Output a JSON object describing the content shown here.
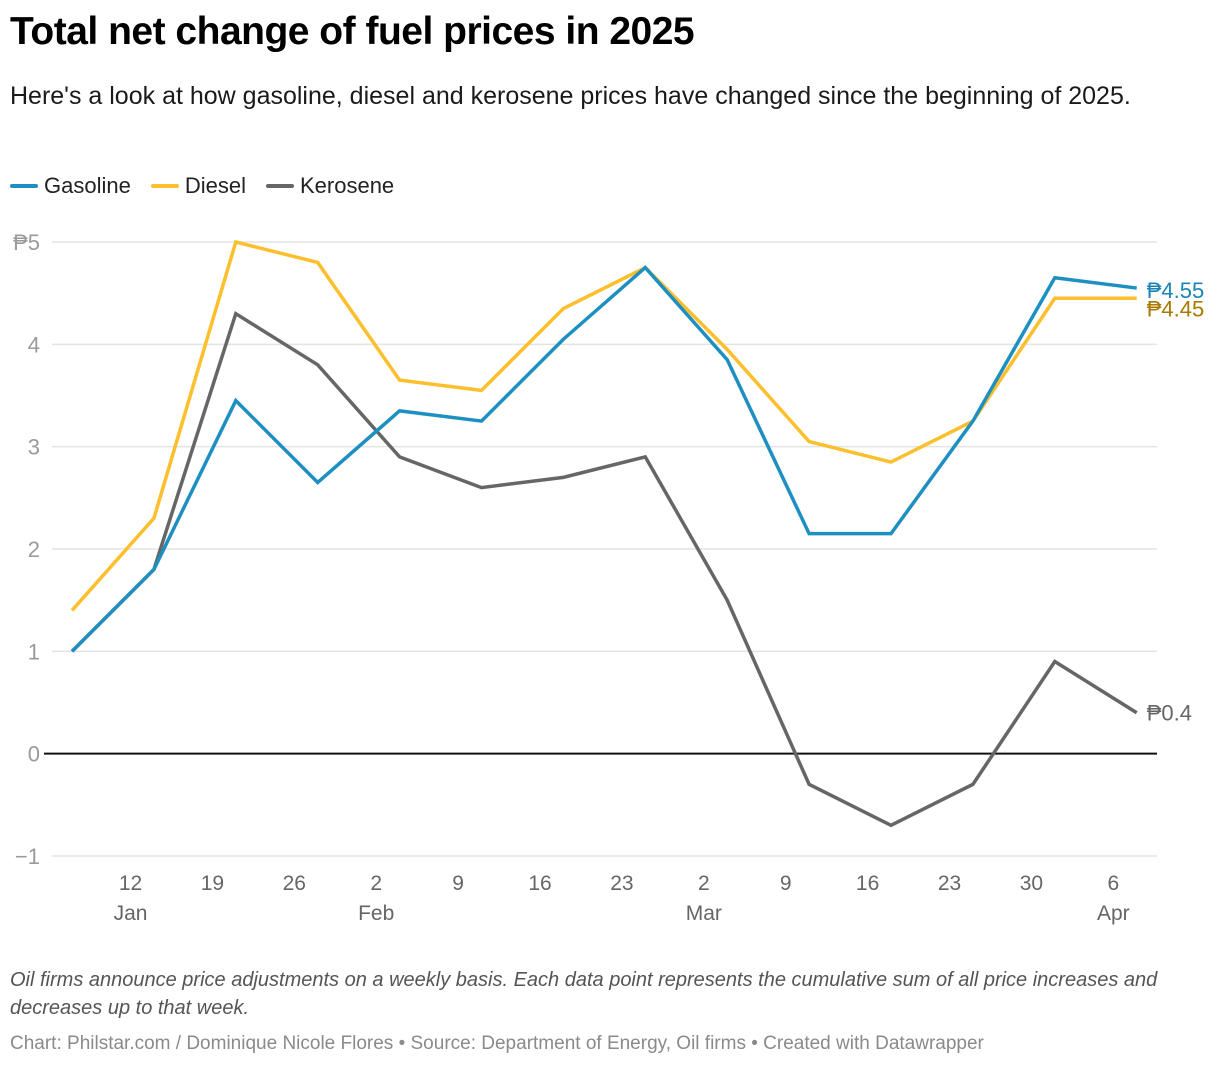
{
  "title": "Total net change of fuel prices in 2025",
  "subtitle": "Here's a look at how gasoline, diesel and kerosene prices have changed since the beginning of 2025.",
  "notes": "Oil firms announce price adjustments on a weekly basis. Each data point represents the cumulative sum of all price increases and decreases up to that week.",
  "byline": "Chart: Philstar.com / Dominique Nicole Flores • Source: Department of Energy, Oil firms • Created with Datawrapper",
  "legend": [
    {
      "name": "Gasoline",
      "color": "#1d8fc1"
    },
    {
      "name": "Diesel",
      "color": "#fdbf2d"
    },
    {
      "name": "Kerosene",
      "color": "#666666"
    }
  ],
  "chart_data": {
    "type": "line",
    "title": "Total net change of fuel prices in 2025",
    "xlabel": "",
    "ylabel": "",
    "currency_prefix": "₱",
    "x": [
      "2025-01-07",
      "2025-01-14",
      "2025-01-21",
      "2025-01-28",
      "2025-02-04",
      "2025-02-11",
      "2025-02-18",
      "2025-02-25",
      "2025-03-04",
      "2025-03-11",
      "2025-03-18",
      "2025-03-25",
      "2025-04-01",
      "2025-04-08"
    ],
    "x_day_offsets": [
      0,
      7,
      14,
      21,
      28,
      35,
      42,
      49,
      56,
      63,
      70,
      77,
      84,
      91
    ],
    "x_ticks": [
      {
        "label": "12",
        "sublabel": "Jan",
        "day_offset": 5
      },
      {
        "label": "19",
        "sublabel": "",
        "day_offset": 12
      },
      {
        "label": "26",
        "sublabel": "",
        "day_offset": 19
      },
      {
        "label": "2",
        "sublabel": "Feb",
        "day_offset": 26
      },
      {
        "label": "9",
        "sublabel": "",
        "day_offset": 33
      },
      {
        "label": "16",
        "sublabel": "",
        "day_offset": 40
      },
      {
        "label": "23",
        "sublabel": "",
        "day_offset": 47
      },
      {
        "label": "2",
        "sublabel": "Mar",
        "day_offset": 54
      },
      {
        "label": "9",
        "sublabel": "",
        "day_offset": 61
      },
      {
        "label": "16",
        "sublabel": "",
        "day_offset": 68
      },
      {
        "label": "23",
        "sublabel": "",
        "day_offset": 75
      },
      {
        "label": "30",
        "sublabel": "",
        "day_offset": 82
      },
      {
        "label": "6",
        "sublabel": "Apr",
        "day_offset": 89
      }
    ],
    "y_ticks": [
      {
        "value": 5,
        "label": "₱5"
      },
      {
        "value": 4,
        "label": "4"
      },
      {
        "value": 3,
        "label": "3"
      },
      {
        "value": 2,
        "label": "2"
      },
      {
        "value": 1,
        "label": "1"
      },
      {
        "value": 0,
        "label": "0"
      },
      {
        "value": -1,
        "label": "−1"
      }
    ],
    "ylim": [
      -1,
      5
    ],
    "grid": true,
    "legend_position": "top-left",
    "series": [
      {
        "name": "Gasoline",
        "color": "#1d8fc1",
        "label_color": "#1a85b5",
        "end_label": "₱4.55",
        "values": [
          1.0,
          1.8,
          3.45,
          2.65,
          3.35,
          3.25,
          4.05,
          4.75,
          3.85,
          2.15,
          2.15,
          3.25,
          4.65,
          4.55
        ]
      },
      {
        "name": "Diesel",
        "color": "#fdbf2d",
        "label_color": "#a87a00",
        "end_label": "₱4.45",
        "values": [
          1.4,
          2.3,
          5.0,
          4.8,
          3.65,
          3.55,
          4.35,
          4.75,
          3.95,
          3.05,
          2.85,
          3.25,
          4.45,
          4.45
        ]
      },
      {
        "name": "Kerosene",
        "color": "#666666",
        "label_color": "#666666",
        "end_label": "₱0.4",
        "values": [
          1.0,
          1.8,
          4.3,
          3.8,
          2.9,
          2.6,
          2.7,
          2.9,
          1.5,
          -0.3,
          -0.7,
          -0.3,
          0.9,
          0.4
        ]
      }
    ]
  }
}
